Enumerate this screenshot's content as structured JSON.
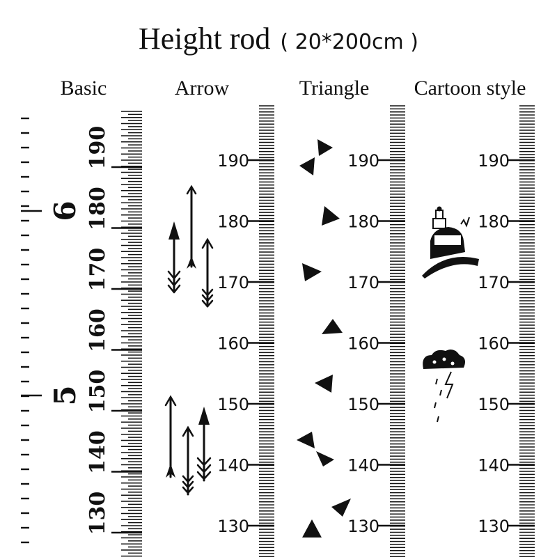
{
  "title": {
    "main": "Height rod",
    "sub": "( 20*200cm )"
  },
  "columns": {
    "basic": "Basic",
    "arrow": "Arrow",
    "triangle": "Triangle",
    "cartoon": "Cartoon style"
  },
  "scale": {
    "cm_labels": [
      "190",
      "180",
      "170",
      "160",
      "150",
      "140",
      "130"
    ],
    "foot_labels": [
      "6",
      "5"
    ]
  },
  "icons": {
    "arrow_column": "feather-arrow-icon",
    "triangle_column": "triangle-icon",
    "cartoon_column": [
      "vehicle-icon",
      "rain-cloud-icon"
    ]
  }
}
